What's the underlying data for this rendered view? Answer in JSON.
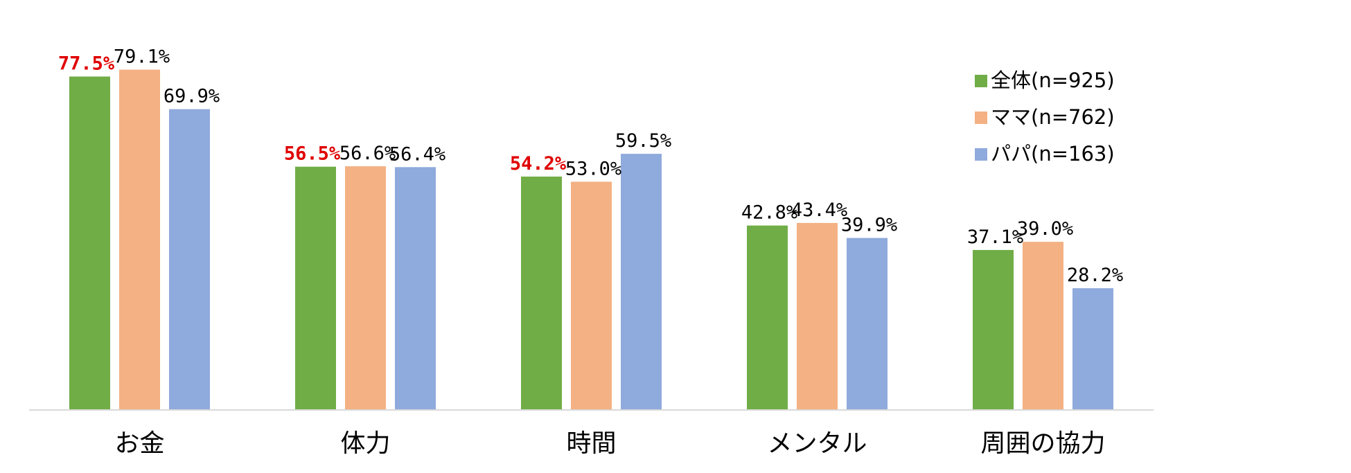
{
  "chart_data": {
    "type": "bar",
    "title": "",
    "xlabel": "",
    "ylabel": "",
    "ylim": [
      0,
      80
    ],
    "grid": false,
    "legend_position": "top-right",
    "categories": [
      "お金",
      "体力",
      "時間",
      "メンタル",
      "周囲の協力"
    ],
    "series": [
      {
        "name": "全体(n=925)",
        "color": "#70ad47",
        "values": [
          77.5,
          56.5,
          54.2,
          42.8,
          37.1
        ],
        "labels": [
          "77.5%",
          "56.5%",
          "54.2%",
          "42.8%",
          "37.1%"
        ],
        "highlight": [
          true,
          true,
          true,
          false,
          false
        ]
      },
      {
        "name": "ママ(n=762)",
        "color": "#f4b183",
        "values": [
          79.1,
          56.6,
          53.0,
          43.4,
          39.0
        ],
        "labels": [
          "79.1%",
          "56.6%",
          "53.0%",
          "43.4%",
          "39.0%"
        ],
        "highlight": [
          false,
          false,
          false,
          false,
          false
        ]
      },
      {
        "name": "パパ(n=163)",
        "color": "#8faadc",
        "values": [
          69.9,
          56.4,
          59.5,
          39.9,
          28.2
        ],
        "labels": [
          "69.9%",
          "56.4%",
          "59.5%",
          "39.9%",
          "28.2%"
        ],
        "highlight": [
          false,
          false,
          false,
          false,
          false
        ]
      }
    ],
    "highlight_color": "#e00000",
    "axis_color": "#d9d9d9"
  }
}
